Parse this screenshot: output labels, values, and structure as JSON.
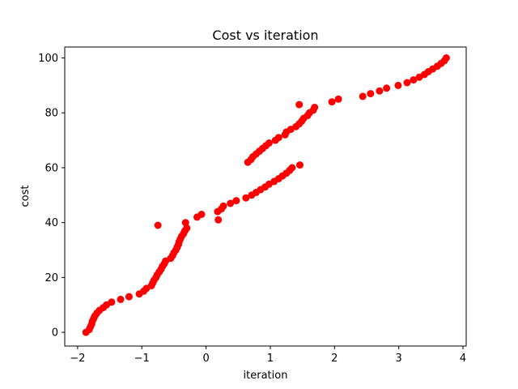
{
  "colors": {
    "marker": "#ff0000",
    "axes": "#000000",
    "background": "#ffffff"
  },
  "chart_data": {
    "type": "scatter",
    "title": "Cost vs iteration",
    "xlabel": "iteration",
    "ylabel": "cost",
    "xlim": [
      -2.2,
      4.05
    ],
    "ylim": [
      -5,
      104
    ],
    "xticks": [
      -2,
      -1,
      0,
      1,
      2,
      3,
      4
    ],
    "yticks": [
      0,
      20,
      40,
      60,
      80,
      100
    ],
    "xtick_labels": [
      "−2",
      "−1",
      "0",
      "1",
      "2",
      "3",
      "4"
    ],
    "ytick_labels": [
      "0",
      "20",
      "40",
      "60",
      "80",
      "100"
    ],
    "grid": false,
    "legend": "none",
    "series": [
      {
        "marker": "circle",
        "color": "#ff0000",
        "x": [
          -1.87,
          -1.82,
          -1.8,
          -1.78,
          -1.77,
          -1.75,
          -1.73,
          -1.7,
          -1.66,
          -1.6,
          -1.55,
          -1.47,
          -1.33,
          -1.2,
          -1.04,
          -0.97,
          -0.93,
          -0.85,
          -0.83,
          -0.81,
          -0.78,
          -0.76,
          -0.73,
          -0.7,
          -0.68,
          -0.65,
          -0.63,
          -0.55,
          -0.52,
          -0.5,
          -0.47,
          -0.45,
          -0.43,
          -0.42,
          -0.4,
          -0.38,
          -0.35,
          -0.33,
          -0.3,
          -0.75,
          -0.32,
          0.19,
          -0.14,
          -0.07,
          0.18,
          0.24,
          0.27,
          0.38,
          0.47,
          0.62,
          0.71,
          0.78,
          0.85,
          0.92,
          0.98,
          1.06,
          1.13,
          1.19,
          1.25,
          1.3,
          1.34,
          1.46,
          0.65,
          0.7,
          0.73,
          0.78,
          0.83,
          0.88,
          0.93,
          0.98,
          1.08,
          1.13,
          1.23,
          1.25,
          1.32,
          1.4,
          1.45,
          1.49,
          1.52,
          1.58,
          1.61,
          1.67,
          1.69,
          1.45,
          1.96,
          2.06,
          2.44,
          2.56,
          2.7,
          2.81,
          2.99,
          3.13,
          3.23,
          3.32,
          3.4,
          3.46,
          3.53,
          3.6,
          3.66,
          3.71,
          3.74
        ]
      }
    ]
  }
}
